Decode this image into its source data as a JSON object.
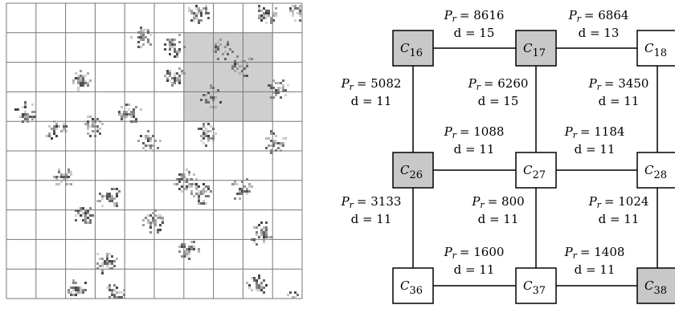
{
  "nodes": [
    {
      "label": "C",
      "subscript": "16"
    },
    {
      "label": "C",
      "subscript": "17"
    },
    {
      "label": "C",
      "subscript": "18"
    },
    {
      "label": "C",
      "subscript": "26"
    },
    {
      "label": "C",
      "subscript": "27"
    },
    {
      "label": "C",
      "subscript": "28"
    },
    {
      "label": "C",
      "subscript": "36"
    },
    {
      "label": "C",
      "subscript": "37"
    },
    {
      "label": "C",
      "subscript": "38"
    }
  ],
  "edges": [
    {
      "power": {
        "symbol": "P",
        "subscript": "r",
        "text": "= 8616"
      },
      "distance": "d = 15"
    },
    {
      "power": {
        "symbol": "P",
        "subscript": "r",
        "text": "= 6864"
      },
      "distance": "d = 13"
    },
    {
      "power": {
        "symbol": "P",
        "subscript": "r",
        "text": "= 5082"
      },
      "distance": "d = 11"
    },
    {
      "power": {
        "symbol": "P",
        "subscript": "r",
        "text": "= 6260"
      },
      "distance": "d = 15"
    },
    {
      "power": {
        "symbol": "P",
        "subscript": "r",
        "text": "= 3450"
      },
      "distance": "d = 11"
    },
    {
      "power": {
        "symbol": "P",
        "subscript": "r",
        "text": "= 1088"
      },
      "distance": "d = 11"
    },
    {
      "power": {
        "symbol": "P",
        "subscript": "r",
        "text": "= 1184"
      },
      "distance": "d = 11"
    },
    {
      "power": {
        "symbol": "P",
        "subscript": "r",
        "text": "= 3133"
      },
      "distance": "d = 11"
    },
    {
      "power": {
        "symbol": "P",
        "subscript": "r",
        "text": "= 800"
      },
      "distance": "d = 11"
    },
    {
      "power": {
        "symbol": "P",
        "subscript": "r",
        "text": "= 1024"
      },
      "distance": "d = 11"
    },
    {
      "power": {
        "symbol": "P",
        "subscript": "r",
        "text": "= 1600"
      },
      "distance": "d = 11"
    },
    {
      "power": {
        "symbol": "P",
        "subscript": "r",
        "text": "= 1408"
      },
      "distance": "d = 11"
    }
  ]
}
